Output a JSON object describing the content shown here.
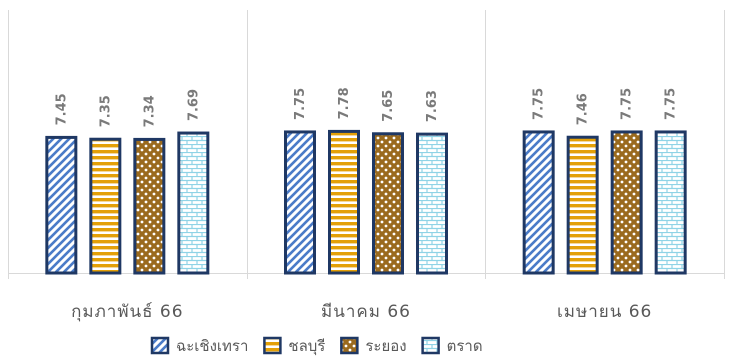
{
  "chart_data": {
    "type": "bar",
    "categories": [
      "กุมภาพันธ์ 66",
      "มีนาคม 66",
      "เมษายน 66"
    ],
    "series": [
      {
        "name": "ฉะเชิงเทรา",
        "values": [
          7.45,
          7.75,
          7.75
        ],
        "pattern": "diagonal",
        "color": "#4a7bc8"
      },
      {
        "name": "ชลบุรี",
        "values": [
          7.35,
          7.78,
          7.46
        ],
        "pattern": "horizontal",
        "color": "#e3a008"
      },
      {
        "name": "ระยอง",
        "values": [
          7.34,
          7.65,
          7.75
        ],
        "pattern": "checker",
        "color": "#9a6a1e"
      },
      {
        "name": "ตราด",
        "values": [
          7.69,
          7.63,
          7.75
        ],
        "pattern": "brick",
        "color": "#8fd3e6"
      }
    ],
    "ylim": [
      0,
      15
    ],
    "grid": false,
    "legend": "bottom",
    "data_labels": true,
    "colors": {
      "outline": "#1f3864",
      "label": "#7a7a7a",
      "axis": "#d9d9d9",
      "text": "#595959"
    }
  }
}
